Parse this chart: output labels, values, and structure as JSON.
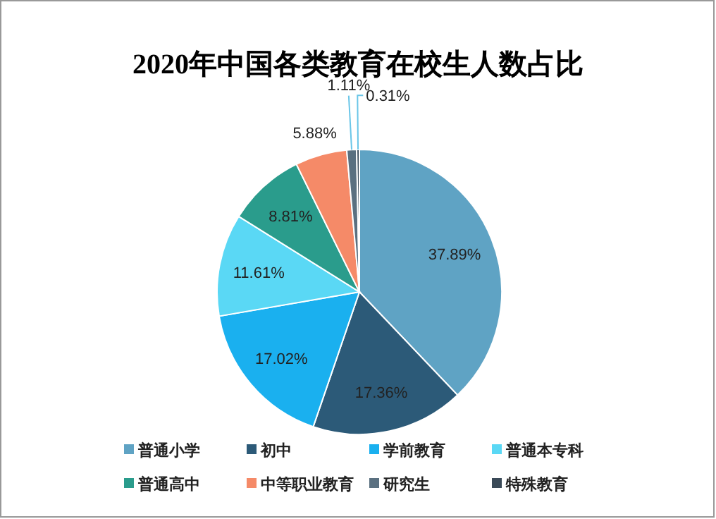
{
  "chart_data": {
    "type": "pie",
    "title": "2020年中国各类教育在校生人数占比",
    "categories": [
      "普通小学",
      "初中",
      "学前教育",
      "普通本专科",
      "普通高中",
      "中等职业教育",
      "研究生",
      "特殊教育"
    ],
    "values": [
      37.89,
      17.36,
      17.02,
      11.61,
      8.81,
      5.88,
      1.11,
      0.31
    ],
    "colors": [
      "#5fa3c4",
      "#2c5a78",
      "#1ab0ef",
      "#5ad8f5",
      "#2a9c8c",
      "#f58a68",
      "#5a7080",
      "#3a4a58"
    ],
    "value_labels": [
      "37.89%",
      "17.36%",
      "17.02%",
      "11.61%",
      "8.81%",
      "5.88%",
      "1.11%",
      "0.31%"
    ],
    "legend": "bottom"
  }
}
